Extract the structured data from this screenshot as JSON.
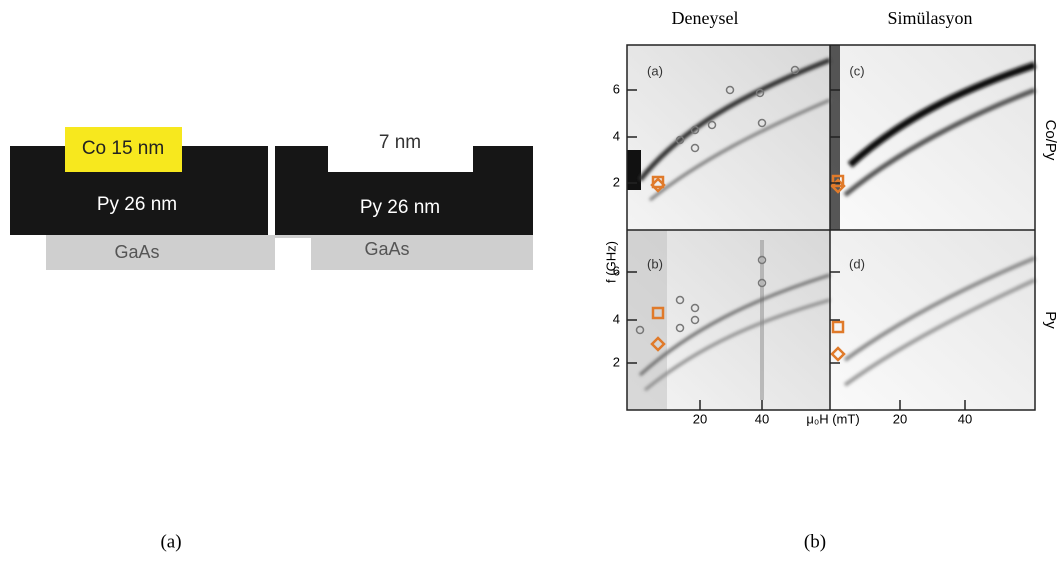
{
  "diagram": {
    "left": {
      "top_layer": "Co 15 nm",
      "middle_layer": "Py 26 nm",
      "substrate": "GaAs"
    },
    "right": {
      "notch": "7 nm",
      "middle_layer": "Py 26 nm",
      "substrate": "GaAs"
    }
  },
  "captions": [
    "(a)",
    "(b)"
  ],
  "column_titles": [
    "Deneysel",
    "Simülasyon"
  ],
  "row_labels": [
    "Co/Py",
    "Py"
  ],
  "panel_labels": [
    "(a)",
    "(c)",
    "(b)",
    "(d)"
  ],
  "axes": {
    "y_label": "f (GHz)",
    "x_label": "μ₀H (mT)",
    "yticks": [
      "2",
      "4",
      "6"
    ],
    "xticks": [
      "20",
      "40"
    ]
  }
}
